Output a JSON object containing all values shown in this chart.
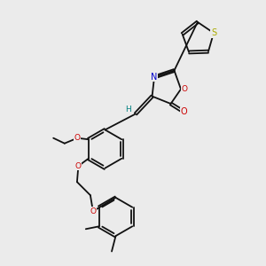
{
  "bg_color": "#ebebeb",
  "black": "#111111",
  "blue": "#0000cc",
  "red": "#cc0000",
  "yellow": "#aaaa00",
  "teal": "#008080",
  "figsize": [
    3.0,
    3.0
  ],
  "dpi": 100,
  "xlim": [
    0,
    10
  ],
  "ylim": [
    0,
    10
  ]
}
